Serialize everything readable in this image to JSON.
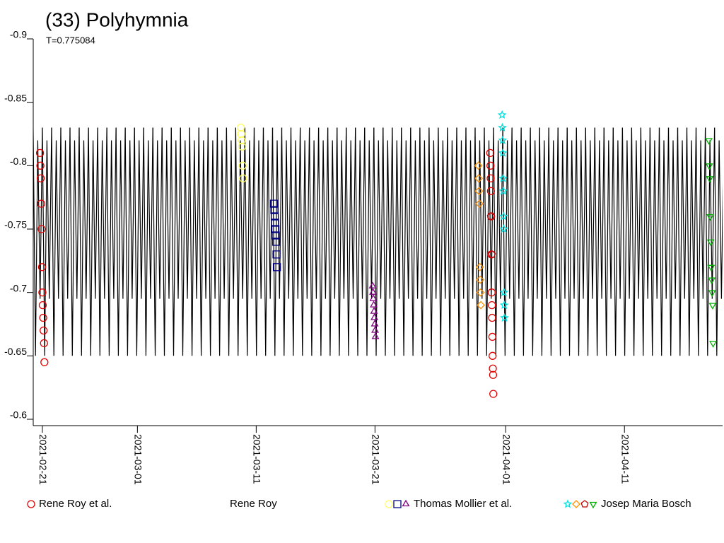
{
  "chart_data": {
    "type": "lightcurve",
    "title": "(33) Polyhymnia",
    "subtitle": "T=0.775084",
    "ylim": [
      -0.6,
      -0.9
    ],
    "yticks": [
      -0.9,
      -0.85,
      -0.8,
      -0.75,
      -0.7,
      -0.65,
      -0.6
    ],
    "xlim": [
      -0.77,
      57.26
    ],
    "xticks": [
      {
        "value": 0,
        "label": "2021-02-21"
      },
      {
        "value": 8,
        "label": "2021-03-01"
      },
      {
        "value": 18,
        "label": "2021-03-11"
      },
      {
        "value": 28,
        "label": "2021-03-21"
      },
      {
        "value": 39,
        "label": "2021-04-01"
      },
      {
        "value": 49,
        "label": "2021-04-11"
      }
    ],
    "model": {
      "color": "#000000",
      "period": 0.775084,
      "phase": [
        0,
        0.25,
        0.5,
        0.75
      ],
      "values": [
        -0.83,
        -0.65,
        -0.82,
        -0.695
      ]
    },
    "groups": [
      {
        "name": "Rene Roy et al.",
        "series": [
          {
            "color": "#e00000",
            "marker": "circle",
            "x": [
              -0.2,
              -0.17,
              -0.14,
              -0.1,
              -0.07,
              -0.03,
              0,
              0.03,
              0.07,
              0.1,
              0.14,
              0.17,
              37.7,
              37.72,
              37.74,
              37.76,
              37.78,
              37.8,
              37.82,
              37.84,
              37.86,
              37.88,
              37.9,
              37.92,
              37.94,
              37.96
            ],
            "values": [
              -0.81,
              -0.8,
              -0.79,
              -0.77,
              -0.75,
              -0.72,
              -0.7,
              -0.69,
              -0.68,
              -0.67,
              -0.66,
              -0.645,
              -0.81,
              -0.8,
              -0.79,
              -0.78,
              -0.76,
              -0.73,
              -0.7,
              -0.69,
              -0.68,
              -0.665,
              -0.65,
              -0.64,
              -0.635,
              -0.62
            ]
          }
        ]
      },
      {
        "name": "Rene Roy",
        "series": []
      },
      {
        "name": "Thomas Mollier et al.",
        "series": [
          {
            "color": "#ffff60",
            "marker": "circle",
            "x": [
              16.7,
              16.74,
              16.78,
              16.82,
              16.86,
              16.9
            ],
            "values": [
              -0.83,
              -0.825,
              -0.82,
              -0.815,
              -0.8,
              -0.79
            ]
          },
          {
            "color": "#000080",
            "marker": "square",
            "x": [
              19.5,
              19.53,
              19.56,
              19.59,
              19.62,
              19.65,
              19.68,
              19.71,
              19.74
            ],
            "values": [
              -0.77,
              -0.765,
              -0.76,
              -0.755,
              -0.75,
              -0.745,
              -0.74,
              -0.73,
              -0.72
            ]
          },
          {
            "color": "#800080",
            "marker": "triangle",
            "x": [
              27.8,
              27.83,
              27.86,
              27.89,
              27.92,
              27.95,
              27.98,
              28.01,
              28.04
            ],
            "values": [
              -0.705,
              -0.7,
              -0.695,
              -0.69,
              -0.685,
              -0.68,
              -0.675,
              -0.67,
              -0.665
            ]
          }
        ]
      },
      {
        "name": "Josep Maria Bosch",
        "series": [
          {
            "color": "#00e0e0",
            "marker": "star",
            "x": [
              38.7,
              38.72,
              38.74,
              38.76,
              38.78,
              38.8,
              38.82,
              38.84,
              38.86,
              38.88,
              38.9
            ],
            "values": [
              -0.84,
              -0.83,
              -0.82,
              -0.81,
              -0.79,
              -0.78,
              -0.76,
              -0.75,
              -0.7,
              -0.69,
              -0.68
            ]
          },
          {
            "color": "#ff9000",
            "marker": "diamond",
            "x": [
              36.7,
              36.73,
              36.76,
              36.79,
              36.82,
              36.85,
              36.88,
              36.91
            ],
            "values": [
              -0.8,
              -0.79,
              -0.78,
              -0.77,
              -0.72,
              -0.71,
              -0.7,
              -0.69
            ]
          },
          {
            "color": "#c00000",
            "marker": "pentagon",
            "x": [
              37.75,
              37.85
            ],
            "values": [
              -0.76,
              -0.73
            ]
          },
          {
            "color": "#00b000",
            "marker": "triangle-down",
            "x": [
              56.1,
              56.14,
              56.18,
              56.22,
              56.26,
              56.3,
              56.34,
              56.38,
              56.42,
              56.46
            ],
            "values": [
              -0.82,
              -0.8,
              -0.79,
              -0.76,
              -0.74,
              -0.72,
              -0.71,
              -0.7,
              -0.69,
              -0.66
            ]
          }
        ]
      }
    ]
  }
}
